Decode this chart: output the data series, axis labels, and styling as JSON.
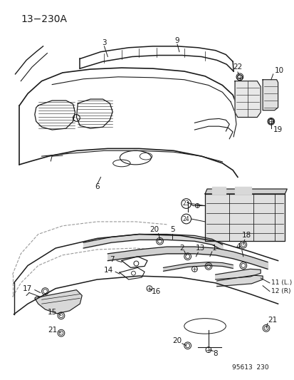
{
  "page_id": "13−230A",
  "catalog_id": "95613  230",
  "background_color": "#ffffff",
  "line_color": "#1a1a1a",
  "fig_width": 4.14,
  "fig_height": 5.33,
  "dpi": 100
}
